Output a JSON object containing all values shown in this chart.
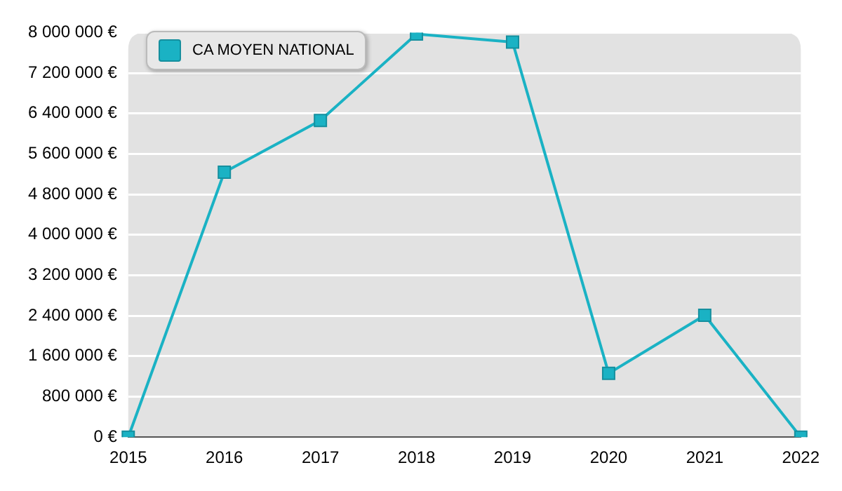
{
  "chart_data": {
    "type": "line",
    "categories": [
      "2015",
      "2016",
      "2017",
      "2018",
      "2019",
      "2020",
      "2021",
      "2022"
    ],
    "series": [
      {
        "name": "CA MOYEN NATIONAL",
        "color": "#1ab2c4",
        "values": [
          0,
          5240000,
          6260000,
          7970000,
          7810000,
          1260000,
          2410000,
          0
        ]
      }
    ],
    "ylim": [
      0,
      8000000
    ],
    "yticks": [
      {
        "value": 0,
        "label": "0 €"
      },
      {
        "value": 800000,
        "label": "800 000 €"
      },
      {
        "value": 1600000,
        "label": "1 600 000 €"
      },
      {
        "value": 2400000,
        "label": "2 400 000 €"
      },
      {
        "value": 3200000,
        "label": "3 200 000 €"
      },
      {
        "value": 4000000,
        "label": "4 000 000 €"
      },
      {
        "value": 4800000,
        "label": "4 800 000 €"
      },
      {
        "value": 5600000,
        "label": "5 600 000 €"
      },
      {
        "value": 6400000,
        "label": "6 400 000 €"
      },
      {
        "value": 7200000,
        "label": "7 200 000 €"
      },
      {
        "value": 8000000,
        "label": "8 000 000 €"
      }
    ],
    "grid": "y",
    "legend": "top left",
    "marker": "square",
    "line_style": "solid"
  }
}
